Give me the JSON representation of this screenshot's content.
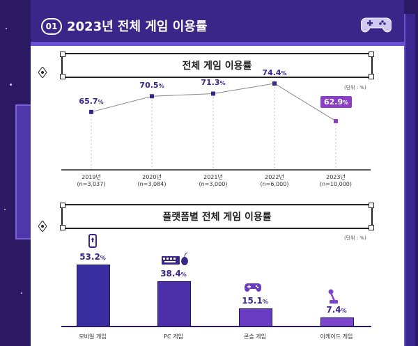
{
  "header": {
    "number": "01",
    "title": "2023년 전체 게임 이용률",
    "icon": "gamepad-icon"
  },
  "section1": {
    "title": "전체 게임 이용률",
    "unit": "(단위 : %)"
  },
  "section2": {
    "title": "플랫폼별 전체 게임 이용률",
    "unit": "(단위 : %)"
  },
  "colors": {
    "header_bg": "#3a2688",
    "line_marker": "#3a2688",
    "highlight": "#8a3fc6",
    "bar_mobile": "#3a2fa0",
    "bar_pc": "#4a2fa8",
    "bar_console": "#6a3cc4",
    "bar_arcade": "#7c45cc"
  },
  "chart_data": [
    {
      "type": "line",
      "title": "전체 게임 이용률",
      "unit": "(단위 : %)",
      "categories": [
        "2019년",
        "2020년",
        "2021년",
        "2022년",
        "2023년"
      ],
      "sample_sizes": [
        "(n=3,037)",
        "(n=3,084)",
        "(n=3,000)",
        "(n=6,000)",
        "(n=10,000)"
      ],
      "values": [
        65.7,
        70.5,
        71.3,
        74.4,
        62.9
      ],
      "labels": [
        "65.7",
        "70.5",
        "71.3",
        "74.4",
        "62.9"
      ],
      "ylim": [
        55,
        80
      ],
      "grid": false
    },
    {
      "type": "bar",
      "title": "플랫폼별 전체 게임 이용률",
      "unit": "(단위 : %)",
      "categories": [
        "모바일 게임",
        "PC 게임",
        "콘솔 게임",
        "아케이드 게임"
      ],
      "values": [
        53.2,
        38.4,
        15.1,
        7.4
      ],
      "labels": [
        "53.2",
        "38.4",
        "15.1",
        "7.4"
      ],
      "icons": [
        "smartphone-icon",
        "keyboard-mouse-icon",
        "gamepad-icon",
        "joystick-icon"
      ],
      "ylim": [
        0,
        60
      ],
      "grid": false
    }
  ]
}
